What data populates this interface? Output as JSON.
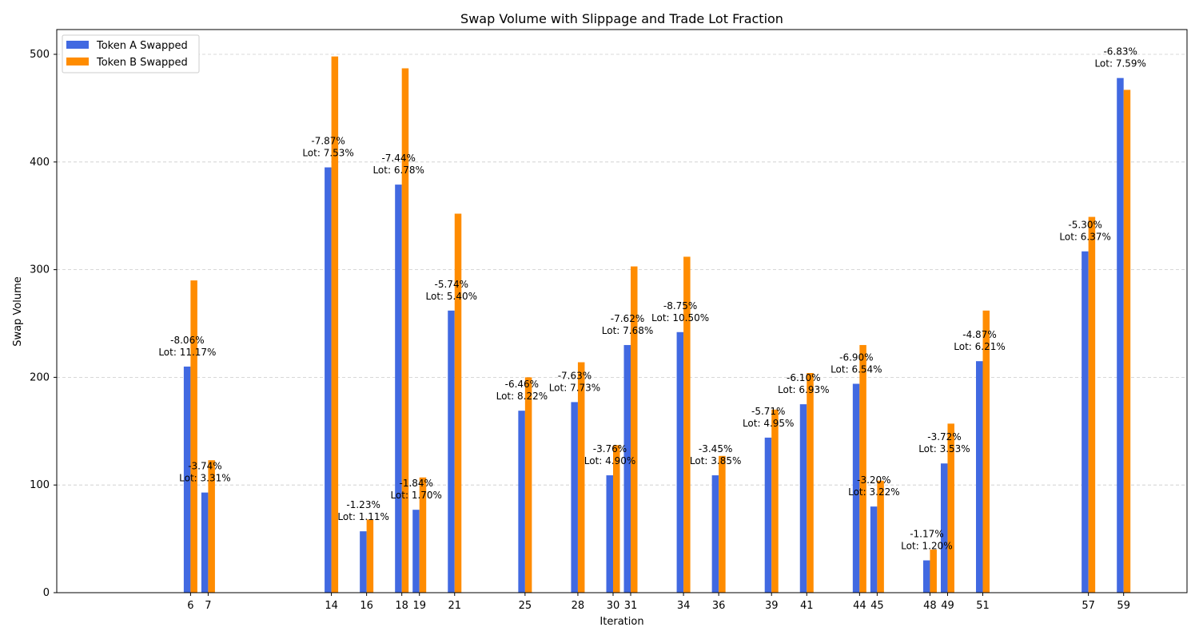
{
  "chart_data": {
    "type": "bar",
    "title": "Swap Volume with Slippage and Trade Lot Fraction",
    "xlabel": "Iteration",
    "ylabel": "Swap Volume",
    "xlim": [
      -1.6,
      62.6
    ],
    "ylim": [
      0,
      523
    ],
    "yticks": [
      0,
      100,
      200,
      300,
      400,
      500
    ],
    "grid": "horizontal, dashed",
    "legend_position": "top-left",
    "colors": {
      "token_a": "#4169e1",
      "token_b": "#ff8c00",
      "grid": "#cccccc"
    },
    "x": [
      6,
      7,
      14,
      16,
      18,
      19,
      21,
      25,
      28,
      30,
      31,
      34,
      36,
      39,
      41,
      44,
      45,
      48,
      49,
      51,
      57,
      59
    ],
    "series": [
      {
        "name": "Token A Swapped",
        "values": [
          210,
          93,
          395,
          57,
          379,
          77,
          262,
          169,
          177,
          109,
          230,
          242,
          109,
          144,
          175,
          194,
          80,
          30,
          120,
          215,
          317,
          478
        ]
      },
      {
        "name": "Token B Swapped",
        "values": [
          290,
          123,
          498,
          68,
          487,
          107,
          352,
          200,
          214,
          137,
          303,
          312,
          127,
          170,
          204,
          230,
          104,
          40,
          157,
          262,
          349,
          467
        ]
      }
    ],
    "annotations": [
      {
        "slippage": "-8.06%",
        "lot": "Lot: 11.17%"
      },
      {
        "slippage": "-3.74%",
        "lot": "Lot: 3.31%"
      },
      {
        "slippage": "-7.87%",
        "lot": "Lot: 7.53%"
      },
      {
        "slippage": "-1.23%",
        "lot": "Lot: 1.11%"
      },
      {
        "slippage": "-7.44%",
        "lot": "Lot: 6.78%"
      },
      {
        "slippage": "-1.84%",
        "lot": "Lot: 1.70%"
      },
      {
        "slippage": "-5.74%",
        "lot": "Lot: 5.40%"
      },
      {
        "slippage": "-6.46%",
        "lot": "Lot: 8.22%"
      },
      {
        "slippage": "-7.63%",
        "lot": "Lot: 7.73%"
      },
      {
        "slippage": "-3.76%",
        "lot": "Lot: 4.90%"
      },
      {
        "slippage": "-7.62%",
        "lot": "Lot: 7.68%"
      },
      {
        "slippage": "-8.75%",
        "lot": "Lot: 10.50%"
      },
      {
        "slippage": "-3.45%",
        "lot": "Lot: 3.85%"
      },
      {
        "slippage": "-5.71%",
        "lot": "Lot: 4.95%"
      },
      {
        "slippage": "-6.10%",
        "lot": "Lot: 6.93%"
      },
      {
        "slippage": "-6.90%",
        "lot": "Lot: 6.54%"
      },
      {
        "slippage": "-3.20%",
        "lot": "Lot: 3.22%"
      },
      {
        "slippage": "-1.17%",
        "lot": "Lot: 1.20%"
      },
      {
        "slippage": "-3.72%",
        "lot": "Lot: 3.53%"
      },
      {
        "slippage": "-4.87%",
        "lot": "Lot: 6.21%"
      },
      {
        "slippage": "-5.30%",
        "lot": "Lot: 6.37%"
      },
      {
        "slippage": "-6.83%",
        "lot": "Lot: 7.59%"
      }
    ]
  }
}
